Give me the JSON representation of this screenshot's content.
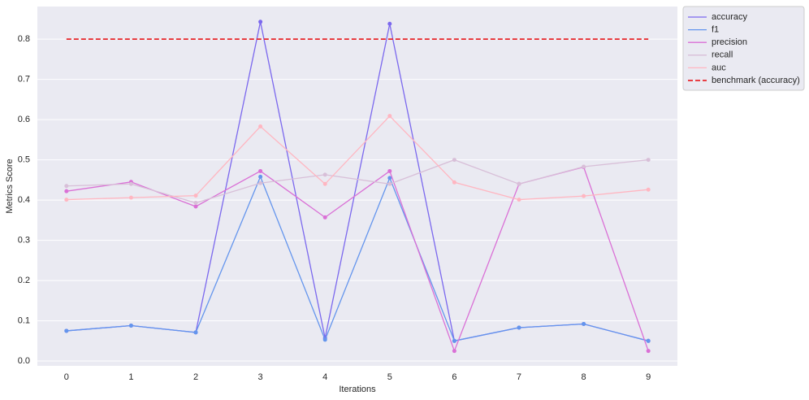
{
  "chart_data": {
    "type": "line",
    "x_label": "Iterations",
    "y_label": "Metrics Score",
    "x": [
      0,
      1,
      2,
      3,
      4,
      5,
      6,
      7,
      8,
      9
    ],
    "xlim": [
      -0.45,
      9.45
    ],
    "xticks": [
      0,
      1,
      2,
      3,
      4,
      5,
      6,
      7,
      8,
      9
    ],
    "ylim": [
      -0.012,
      0.881
    ],
    "yticks": [
      {
        "value": 0,
        "label": "0.0"
      },
      0.1,
      0.2,
      0.3,
      0.4,
      0.5,
      0.6,
      0.7,
      0.8
    ],
    "grid": true,
    "legend": "outside upper right",
    "series": [
      {
        "name": "accuracy",
        "color": "#7b68ee",
        "markers": true,
        "values": [
          0.075,
          0.088,
          0.071,
          0.843,
          0.057,
          0.838,
          0.05,
          0.083,
          0.092,
          0.05
        ]
      },
      {
        "name": "f1",
        "color": "#6495ed",
        "markers": true,
        "values": [
          0.075,
          0.088,
          0.071,
          0.458,
          0.053,
          0.455,
          0.05,
          0.083,
          0.092,
          0.05
        ]
      },
      {
        "name": "precision",
        "color": "#da70d6",
        "markers": true,
        "values": [
          0.422,
          0.445,
          0.384,
          0.472,
          0.357,
          0.472,
          0.025,
          0.44,
          0.482,
          0.025
        ]
      },
      {
        "name": "recall",
        "color": "#d8bfd8",
        "markers": true,
        "values": [
          0.435,
          0.44,
          0.393,
          0.442,
          0.463,
          0.44,
          0.5,
          0.44,
          0.483,
          0.5
        ]
      },
      {
        "name": "auc",
        "color": "#ffb6c1",
        "markers": true,
        "values": [
          0.401,
          0.406,
          0.411,
          0.583,
          0.44,
          0.609,
          0.444,
          0.401,
          0.41,
          0.426
        ]
      },
      {
        "name": "benchmark (accuracy)",
        "color": "#e8262b",
        "markers": false,
        "dashed": true,
        "values": [
          0.8,
          0.8,
          0.8,
          0.8,
          0.8,
          0.8,
          0.8,
          0.8,
          0.8,
          0.8
        ]
      }
    ]
  }
}
